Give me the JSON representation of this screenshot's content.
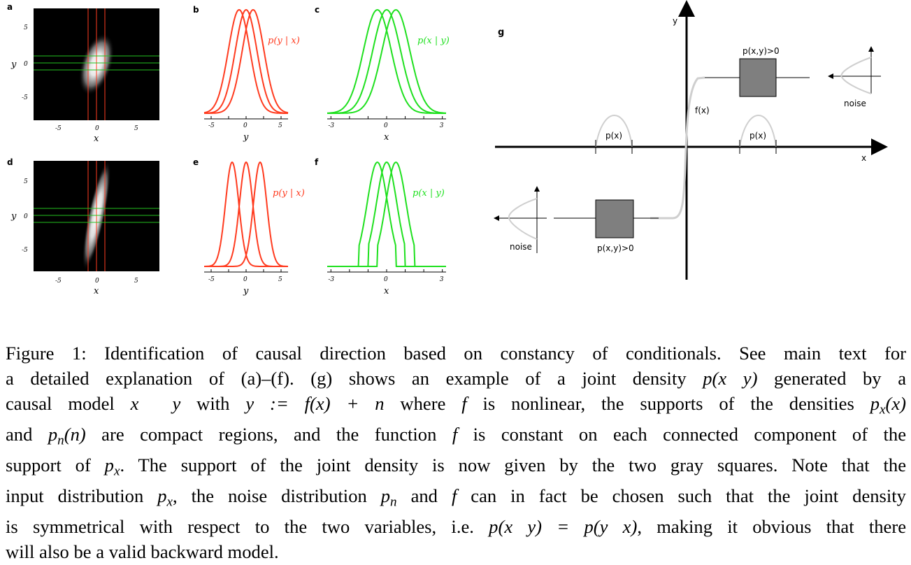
{
  "panel_labels": {
    "a": "a",
    "b": "b",
    "c": "c",
    "d": "d",
    "e": "e",
    "f": "f",
    "g": "g"
  },
  "heatmaps": [
    {
      "id": "a",
      "axis_label_x": "x",
      "axis_label_y": "y",
      "x_ticks": [
        "-5",
        "0",
        "5"
      ],
      "y_ticks": [
        "5",
        "0",
        "-5"
      ],
      "vertical_lines_x": [
        -1,
        0,
        1
      ],
      "horizontal_lines_y": [
        1,
        0,
        -1
      ],
      "colors": {
        "vertical": "#ff3b1f",
        "horizontal": "#23c21f"
      }
    },
    {
      "id": "d",
      "axis_label_x": "x",
      "axis_label_y": "y",
      "x_ticks": [
        "-5",
        "0",
        "5"
      ],
      "y_ticks": [
        "5",
        "0",
        "-5"
      ],
      "vertical_lines_x": [
        -1,
        0,
        1
      ],
      "horizontal_lines_y": [
        1,
        0,
        -1
      ],
      "colors": {
        "vertical": "#ff3b1f",
        "horizontal": "#23c21f"
      }
    }
  ],
  "chart_data": [
    {
      "id": "b",
      "type": "line",
      "legend": "p(y | x)",
      "xlabel": "y",
      "x_ticks": [
        "-5",
        "0",
        "5"
      ],
      "xlim": [
        -6,
        6
      ],
      "centers": [
        -1,
        0,
        1
      ],
      "sigma": 1.55,
      "shape": "gaussian",
      "color": "#ff3b1f"
    },
    {
      "id": "c",
      "type": "line",
      "legend": "p(x | y)",
      "xlabel": "x",
      "x_ticks": [
        "-3",
        "0",
        "3"
      ],
      "xlim": [
        -3.2,
        3.2
      ],
      "centers": [
        -0.5,
        0,
        0.5
      ],
      "sigma": 0.75,
      "shape": "gaussian",
      "color": "#1fe01f"
    },
    {
      "id": "e",
      "type": "line",
      "legend": "p(y | x)",
      "xlabel": "y",
      "x_ticks": [
        "-5",
        "0",
        "5"
      ],
      "xlim": [
        -6,
        6
      ],
      "centers": [
        -2,
        0,
        2
      ],
      "sigma": 0.95,
      "shape": "gaussian",
      "color": "#ff3b1f"
    },
    {
      "id": "f",
      "type": "line",
      "legend": "p(x | y)",
      "xlabel": "x",
      "x_ticks": [
        "-3",
        "0",
        "3"
      ],
      "xlim": [
        -3.2,
        3.2
      ],
      "centers": [
        -0.5,
        0,
        0.5
      ],
      "sigma": 0.55,
      "shape": "truncated",
      "color": "#1fe01f"
    }
  ],
  "diagram_g": {
    "axis_x_label": "x",
    "axis_y_label": "y",
    "fx_label": "f(x)",
    "px_label_left": "p(x)",
    "px_label_right": "p(x)",
    "pxy_label_top": "p(x,y)>0",
    "pxy_label_bottom": "p(x,y)>0",
    "noise_label_right": "noise",
    "noise_label_left": "noise",
    "colors": {
      "square": "#7f7f7f",
      "curve": "#cfcfcf"
    }
  },
  "caption": {
    "l1": "Figure 1: Identification of causal direction based on constancy of conditionals. See main text for",
    "l2a": "a detailed explanation of (a)–(f). (g) shows an example of a joint density ",
    "l2m": "p(x  y)",
    "l2b": " generated by a",
    "l3a": "causal model ",
    "l3m1": "x",
    "l3m2": "y",
    "l3b": " with ",
    "l3m3": "y := f(x) + n",
    "l3c": " where ",
    "l3m4": "f",
    "l3d": " is nonlinear, the supports of the densities ",
    "l3m5": "p",
    "l3s5": "x",
    "l3m6": "(x)",
    "l4a": "and ",
    "l4m1": "p",
    "l4s1": "n",
    "l4m2": "(n)",
    "l4b": " are compact regions, and the function ",
    "l4m3": "f",
    "l4c": " is constant on each connected component of the",
    "l5a": "support of ",
    "l5m1": "p",
    "l5s1": "x",
    "l5b": ". The support of the joint density is now given by the two gray squares. Note that the",
    "l6a": "input distribution ",
    "l6m1": "p",
    "l6s1": "x",
    "l6b": ", the noise distribution ",
    "l6m2": "p",
    "l6s2": "n",
    "l6c": " and ",
    "l6m3": "f",
    "l6d": " can in fact be chosen such that the joint density",
    "l7a": "is symmetrical with respect to the two variables, i.e. ",
    "l7m1": "p(x  y) = p(y  x)",
    "l7b": ", making it obvious that there",
    "l8": "will also be a valid backward model."
  }
}
